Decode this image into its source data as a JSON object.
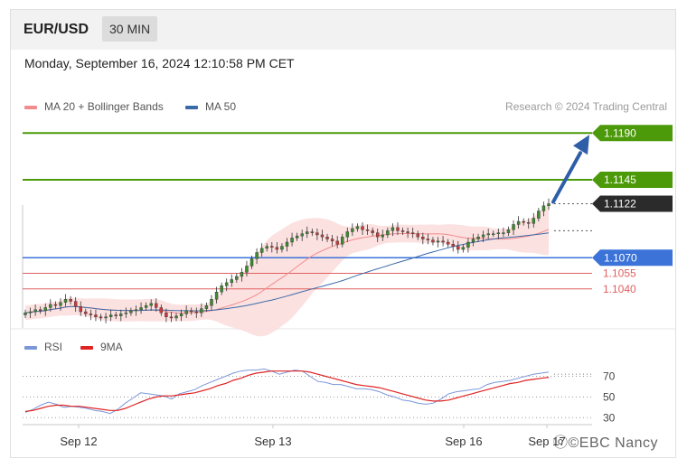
{
  "header": {
    "pair": "EUR/USD",
    "timeframe": "30 MIN"
  },
  "timestamp": "Monday, September 16, 2024 12:10:58 PM CET",
  "legend": {
    "ma20_label": "MA 20 + Bollinger Bands",
    "ma50_label": "MA 50",
    "rsi_label": "RSI",
    "ma9_label": "9MA"
  },
  "credit": "Research © 2024 Trading Central",
  "watermark": "ⓞ©EBC Nancy",
  "colors": {
    "green_level": "#4c9a0a",
    "blue_level": "#3b73d8",
    "red_level": "#e06060",
    "current_price": "#2b2b2b",
    "ma20": "#f28b8b",
    "ma50": "#3b6aa8",
    "bollinger_fill": "#fbdcdc",
    "candle_up": "#3d8b2e",
    "candle_down": "#c43c3c",
    "rsi": "#7b97d9",
    "rsi_ma": "#e02424"
  },
  "chart_data": [
    {
      "type": "candlestick",
      "title": "EUR/USD",
      "timeframe": "30 MIN",
      "x_ticks": [
        "Sep 12",
        "Sep 13",
        "Sep 16",
        "Sep 17"
      ],
      "ylim": [
        1.1005,
        1.1205
      ],
      "levels": [
        {
          "value": 1.119,
          "label": "1.1190",
          "kind": "target"
        },
        {
          "value": 1.1145,
          "label": "1.1145",
          "kind": "resistance"
        },
        {
          "value": 1.1122,
          "label": "1.1122",
          "kind": "current"
        },
        {
          "value": 1.107,
          "label": "1.1070",
          "kind": "pivot"
        },
        {
          "value": 1.1055,
          "label": "1.1055",
          "kind": "support"
        },
        {
          "value": 1.104,
          "label": "1.1040",
          "kind": "support"
        }
      ],
      "close": [
        1.1017,
        1.1018,
        1.102,
        1.1019,
        1.1022,
        1.1025,
        1.1024,
        1.1027,
        1.103,
        1.1028,
        1.1023,
        1.1018,
        1.1016,
        1.1015,
        1.1013,
        1.1012,
        1.1013,
        1.1015,
        1.1014,
        1.1016,
        1.1017,
        1.1019,
        1.102,
        1.1022,
        1.1024,
        1.1026,
        1.1022,
        1.1017,
        1.1013,
        1.1012,
        1.1014,
        1.1016,
        1.1019,
        1.1018,
        1.1017,
        1.1021,
        1.1024,
        1.103,
        1.1037,
        1.1043,
        1.1046,
        1.1049,
        1.1052,
        1.1056,
        1.1062,
        1.1069,
        1.1075,
        1.1079,
        1.1081,
        1.108,
        1.1078,
        1.1081,
        1.1085,
        1.1089,
        1.1091,
        1.1093,
        1.1095,
        1.1094,
        1.1092,
        1.109,
        1.1088,
        1.1086,
        1.1083,
        1.109,
        1.1095,
        1.1098,
        1.11,
        1.1097,
        1.1096,
        1.1094,
        1.109,
        1.1092,
        1.1096,
        1.1099,
        1.1096,
        1.1095,
        1.1094,
        1.1093,
        1.109,
        1.1088,
        1.1087,
        1.1085,
        1.1086,
        1.1085,
        1.1083,
        1.1081,
        1.1078,
        1.108,
        1.1085,
        1.1088,
        1.109,
        1.1092,
        1.1093,
        1.1093,
        1.1094,
        1.1094,
        1.1097,
        1.1102,
        1.1105,
        1.1104,
        1.1103,
        1.1108,
        1.1115,
        1.112,
        1.1122
      ],
      "indicators": [
        "MA 20 + Bollinger Bands",
        "MA 50"
      ]
    },
    {
      "type": "line",
      "title": "RSI",
      "ylim": [
        25,
        80
      ],
      "y_ticks": [
        70,
        50,
        30
      ],
      "series": [
        {
          "name": "RSI",
          "values": [
            35,
            38,
            42,
            45,
            43,
            40,
            41,
            40,
            39,
            37,
            36,
            34,
            38,
            44,
            49,
            54,
            53,
            52,
            51,
            48,
            53,
            55,
            57,
            61,
            64,
            67,
            70,
            73,
            75,
            76,
            76,
            77,
            75,
            72,
            74,
            76,
            75,
            70,
            65,
            64,
            62,
            62,
            60,
            58,
            58,
            57,
            55,
            52,
            50,
            47,
            46,
            44,
            43,
            44,
            48,
            53,
            55,
            56,
            57,
            58,
            62,
            64,
            65,
            66,
            68,
            70,
            72,
            73,
            74
          ]
        },
        {
          "name": "9MA",
          "values": [
            36,
            37,
            39,
            41,
            42,
            42,
            41,
            41,
            40,
            39,
            38,
            37,
            37,
            39,
            42,
            45,
            48,
            50,
            51,
            51,
            52,
            53,
            54,
            56,
            58,
            61,
            63,
            66,
            68,
            71,
            73,
            74,
            75,
            75,
            75,
            75,
            75,
            74,
            72,
            70,
            68,
            66,
            64,
            62,
            61,
            60,
            59,
            57,
            55,
            53,
            51,
            49,
            47,
            46,
            46,
            47,
            49,
            51,
            53,
            55,
            57,
            59,
            61,
            63,
            64,
            66,
            67,
            68,
            69
          ]
        }
      ]
    }
  ]
}
